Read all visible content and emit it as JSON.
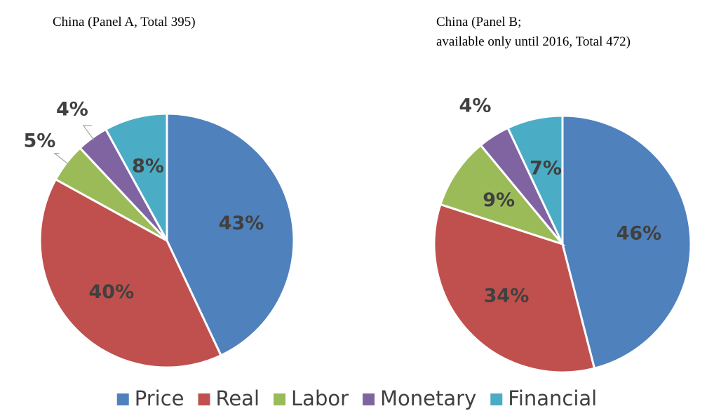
{
  "chart_data": [
    {
      "type": "pie",
      "title": "China (Panel A, Total 395)",
      "values": [
        43,
        40,
        5,
        4,
        8
      ],
      "value_labels": [
        "43%",
        "40%",
        "5%",
        "4%",
        "8%"
      ]
    },
    {
      "type": "pie",
      "title": [
        "China (Panel B;",
        "available only until 2016, Total 472)"
      ],
      "values": [
        46,
        34,
        9,
        4,
        7
      ],
      "value_labels": [
        "46%",
        "34%",
        "9%",
        "4%",
        "7%"
      ]
    }
  ],
  "legend": {
    "categories": [
      "Price",
      "Real",
      "Labor",
      "Monetary",
      "Financial"
    ],
    "colors": [
      "#4f81bd",
      "#c0504d",
      "#9bbb59",
      "#8064a2",
      "#4bacc6"
    ]
  }
}
